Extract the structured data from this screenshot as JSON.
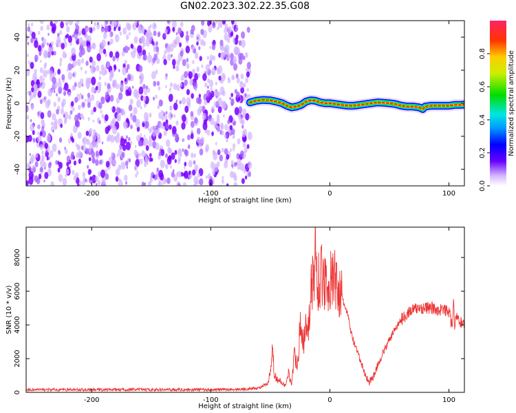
{
  "title": "GN02.2023.302.22.35.G08",
  "colors": {
    "noise": "#8a2be2",
    "snr_line": "#ee3333",
    "frame": "#000000"
  },
  "chart_data": [
    {
      "type": "heatmap",
      "name": "spectrogram",
      "xlabel": "Height of straight line (km)",
      "ylabel": "Frequency (Hz)",
      "xlim": [
        -255,
        113
      ],
      "ylim": [
        -50,
        50
      ],
      "xticks": [
        -200,
        -100,
        0,
        100
      ],
      "xtick_labels": [
        "-200",
        "-100",
        "0",
        "100"
      ],
      "yticks": [
        -40,
        -20,
        0,
        20,
        40
      ],
      "ytick_labels": [
        "-40",
        "-20",
        "0",
        "20",
        "40"
      ],
      "noise_region_x": [
        -255,
        -67
      ],
      "signal_start_x": -67,
      "signal_track": {
        "x": [
          -67,
          -62,
          -56,
          -50,
          -45,
          -40,
          -36,
          -32,
          -28,
          -24,
          -20,
          -16,
          -12,
          -8,
          -4,
          0,
          5,
          10,
          15,
          20,
          25,
          30,
          35,
          40,
          45,
          50,
          55,
          60,
          65,
          70,
          75,
          78,
          80,
          85,
          90,
          95,
          100,
          105,
          110,
          113
        ],
        "freq": [
          0.5,
          1.5,
          2,
          1.8,
          1,
          0,
          -1.5,
          -2.5,
          -2,
          -1,
          1,
          1.8,
          1.5,
          0.5,
          0,
          0,
          -0.5,
          -1,
          -1.5,
          -1.5,
          -1,
          -0.5,
          0,
          0.5,
          0.3,
          0,
          -0.5,
          -1.5,
          -2,
          -2,
          -2.5,
          -3.5,
          -2,
          -1.5,
          -1.5,
          -1.5,
          -1.5,
          -1,
          -1,
          -0.8
        ]
      },
      "colorbar": {
        "label": "Normalized spectral amplitude",
        "range": [
          0,
          1
        ],
        "ticks": [
          0.0,
          0.2,
          0.4,
          0.6,
          0.8
        ],
        "tick_labels": [
          "0.0",
          "0.2",
          "0.4",
          "0.6",
          "0.8"
        ]
      }
    },
    {
      "type": "line",
      "name": "snr",
      "xlabel": "Height of straight line (km)",
      "ylabel": "SNR (10 * v/v)",
      "xlim": [
        -255,
        113
      ],
      "ylim": [
        0,
        9800
      ],
      "xticks": [
        -200,
        -100,
        0,
        100
      ],
      "xtick_labels": [
        "-200",
        "-100",
        "0",
        "100"
      ],
      "yticks": [
        0,
        2000,
        4000,
        6000,
        8000
      ],
      "ytick_labels": [
        "0",
        "2000",
        "4000",
        "6000",
        "8000"
      ],
      "series": [
        {
          "name": "SNR",
          "color": "#ee3333",
          "x": [
            -255,
            -230,
            -200,
            -175,
            -150,
            -125,
            -100,
            -80,
            -70,
            -60,
            -52,
            -49,
            -48,
            -47,
            -45,
            -40,
            -37,
            -35,
            -32,
            -30,
            -27,
            -25,
            -22,
            -20,
            -18,
            -15,
            -13,
            -12,
            -11,
            -10,
            -8,
            -5,
            -3,
            0,
            3,
            5,
            8,
            10,
            13,
            15,
            18,
            20,
            25,
            30,
            33,
            35,
            38,
            40,
            45,
            50,
            55,
            60,
            65,
            70,
            75,
            80,
            85,
            90,
            95,
            100,
            103,
            104,
            105,
            106,
            107,
            108,
            110,
            113
          ],
          "y": [
            150,
            160,
            160,
            165,
            160,
            160,
            160,
            170,
            200,
            250,
            500,
            1500,
            3000,
            1200,
            800,
            600,
            350,
            1200,
            500,
            2200,
            1800,
            3800,
            3000,
            4500,
            3700,
            6800,
            6200,
            9800,
            6500,
            6600,
            6900,
            6800,
            6500,
            6500,
            6700,
            6600,
            6000,
            5700,
            5000,
            4600,
            3500,
            3000,
            2000,
            1000,
            600,
            800,
            1100,
            1600,
            2400,
            3100,
            3800,
            4300,
            4700,
            4900,
            5000,
            5000,
            5000,
            4900,
            4900,
            4800,
            3800,
            5800,
            3400,
            4700,
            4500,
            4200,
            4200,
            4000
          ]
        }
      ]
    }
  ]
}
